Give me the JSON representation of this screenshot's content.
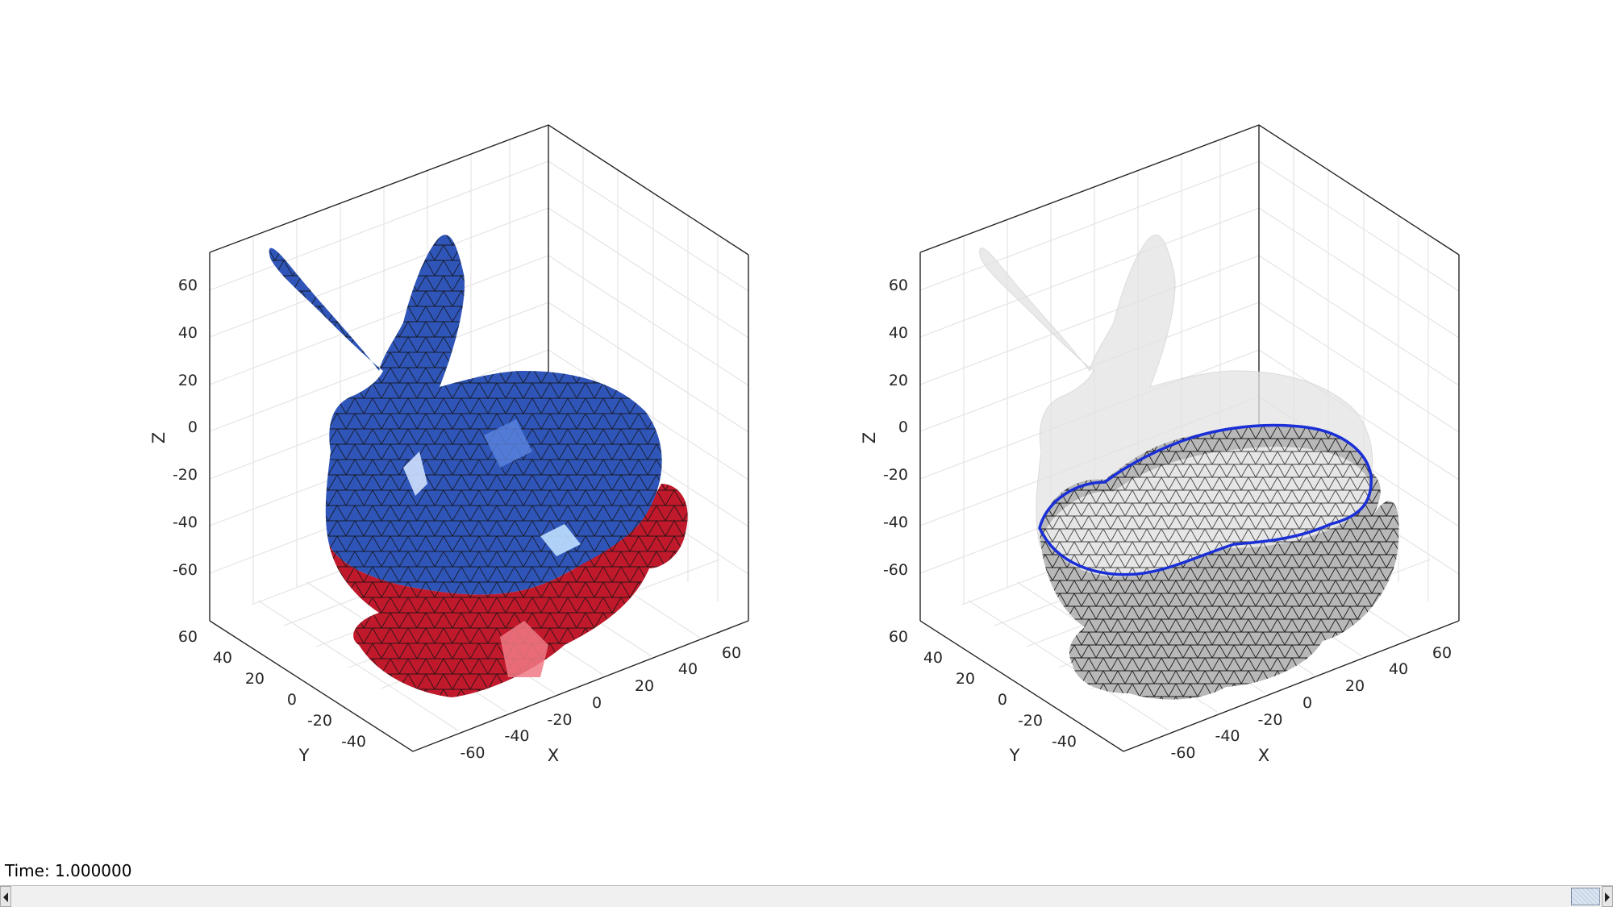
{
  "figure": {
    "panels": [
      {
        "name": "left",
        "axis_labels": {
          "x": "X",
          "y": "Y",
          "z": "Z"
        },
        "z_ticks": [
          "60",
          "40",
          "20",
          "0",
          "-20",
          "-40",
          "-60"
        ],
        "y_ticks": [
          "60",
          "40",
          "20",
          "0",
          "-20",
          "-40"
        ],
        "x_ticks": [
          "-60",
          "-40",
          "-20",
          "0",
          "20",
          "40",
          "60"
        ],
        "colors": {
          "upper": "#3a63c4",
          "lower": "#c41e2e",
          "edge": "#111111"
        }
      },
      {
        "name": "right",
        "axis_labels": {
          "x": "X",
          "y": "Y",
          "z": "Z"
        },
        "z_ticks": [
          "60",
          "40",
          "20",
          "0",
          "-20",
          "-40",
          "-60"
        ],
        "y_ticks": [
          "60",
          "40",
          "20",
          "0",
          "-20",
          "-40"
        ],
        "x_ticks": [
          "-60",
          "-40",
          "-20",
          "0",
          "20",
          "40",
          "60"
        ],
        "colors": {
          "ghost": "#d9d9d9",
          "bowl": "#bfbfbf",
          "rim": "#1a2fd6",
          "edge": "#111111"
        }
      }
    ]
  },
  "status": {
    "time_label": "Time: 1.000000"
  },
  "scrollbar": {
    "left_icon": "arrow-left-icon",
    "right_icon": "arrow-right-icon"
  }
}
